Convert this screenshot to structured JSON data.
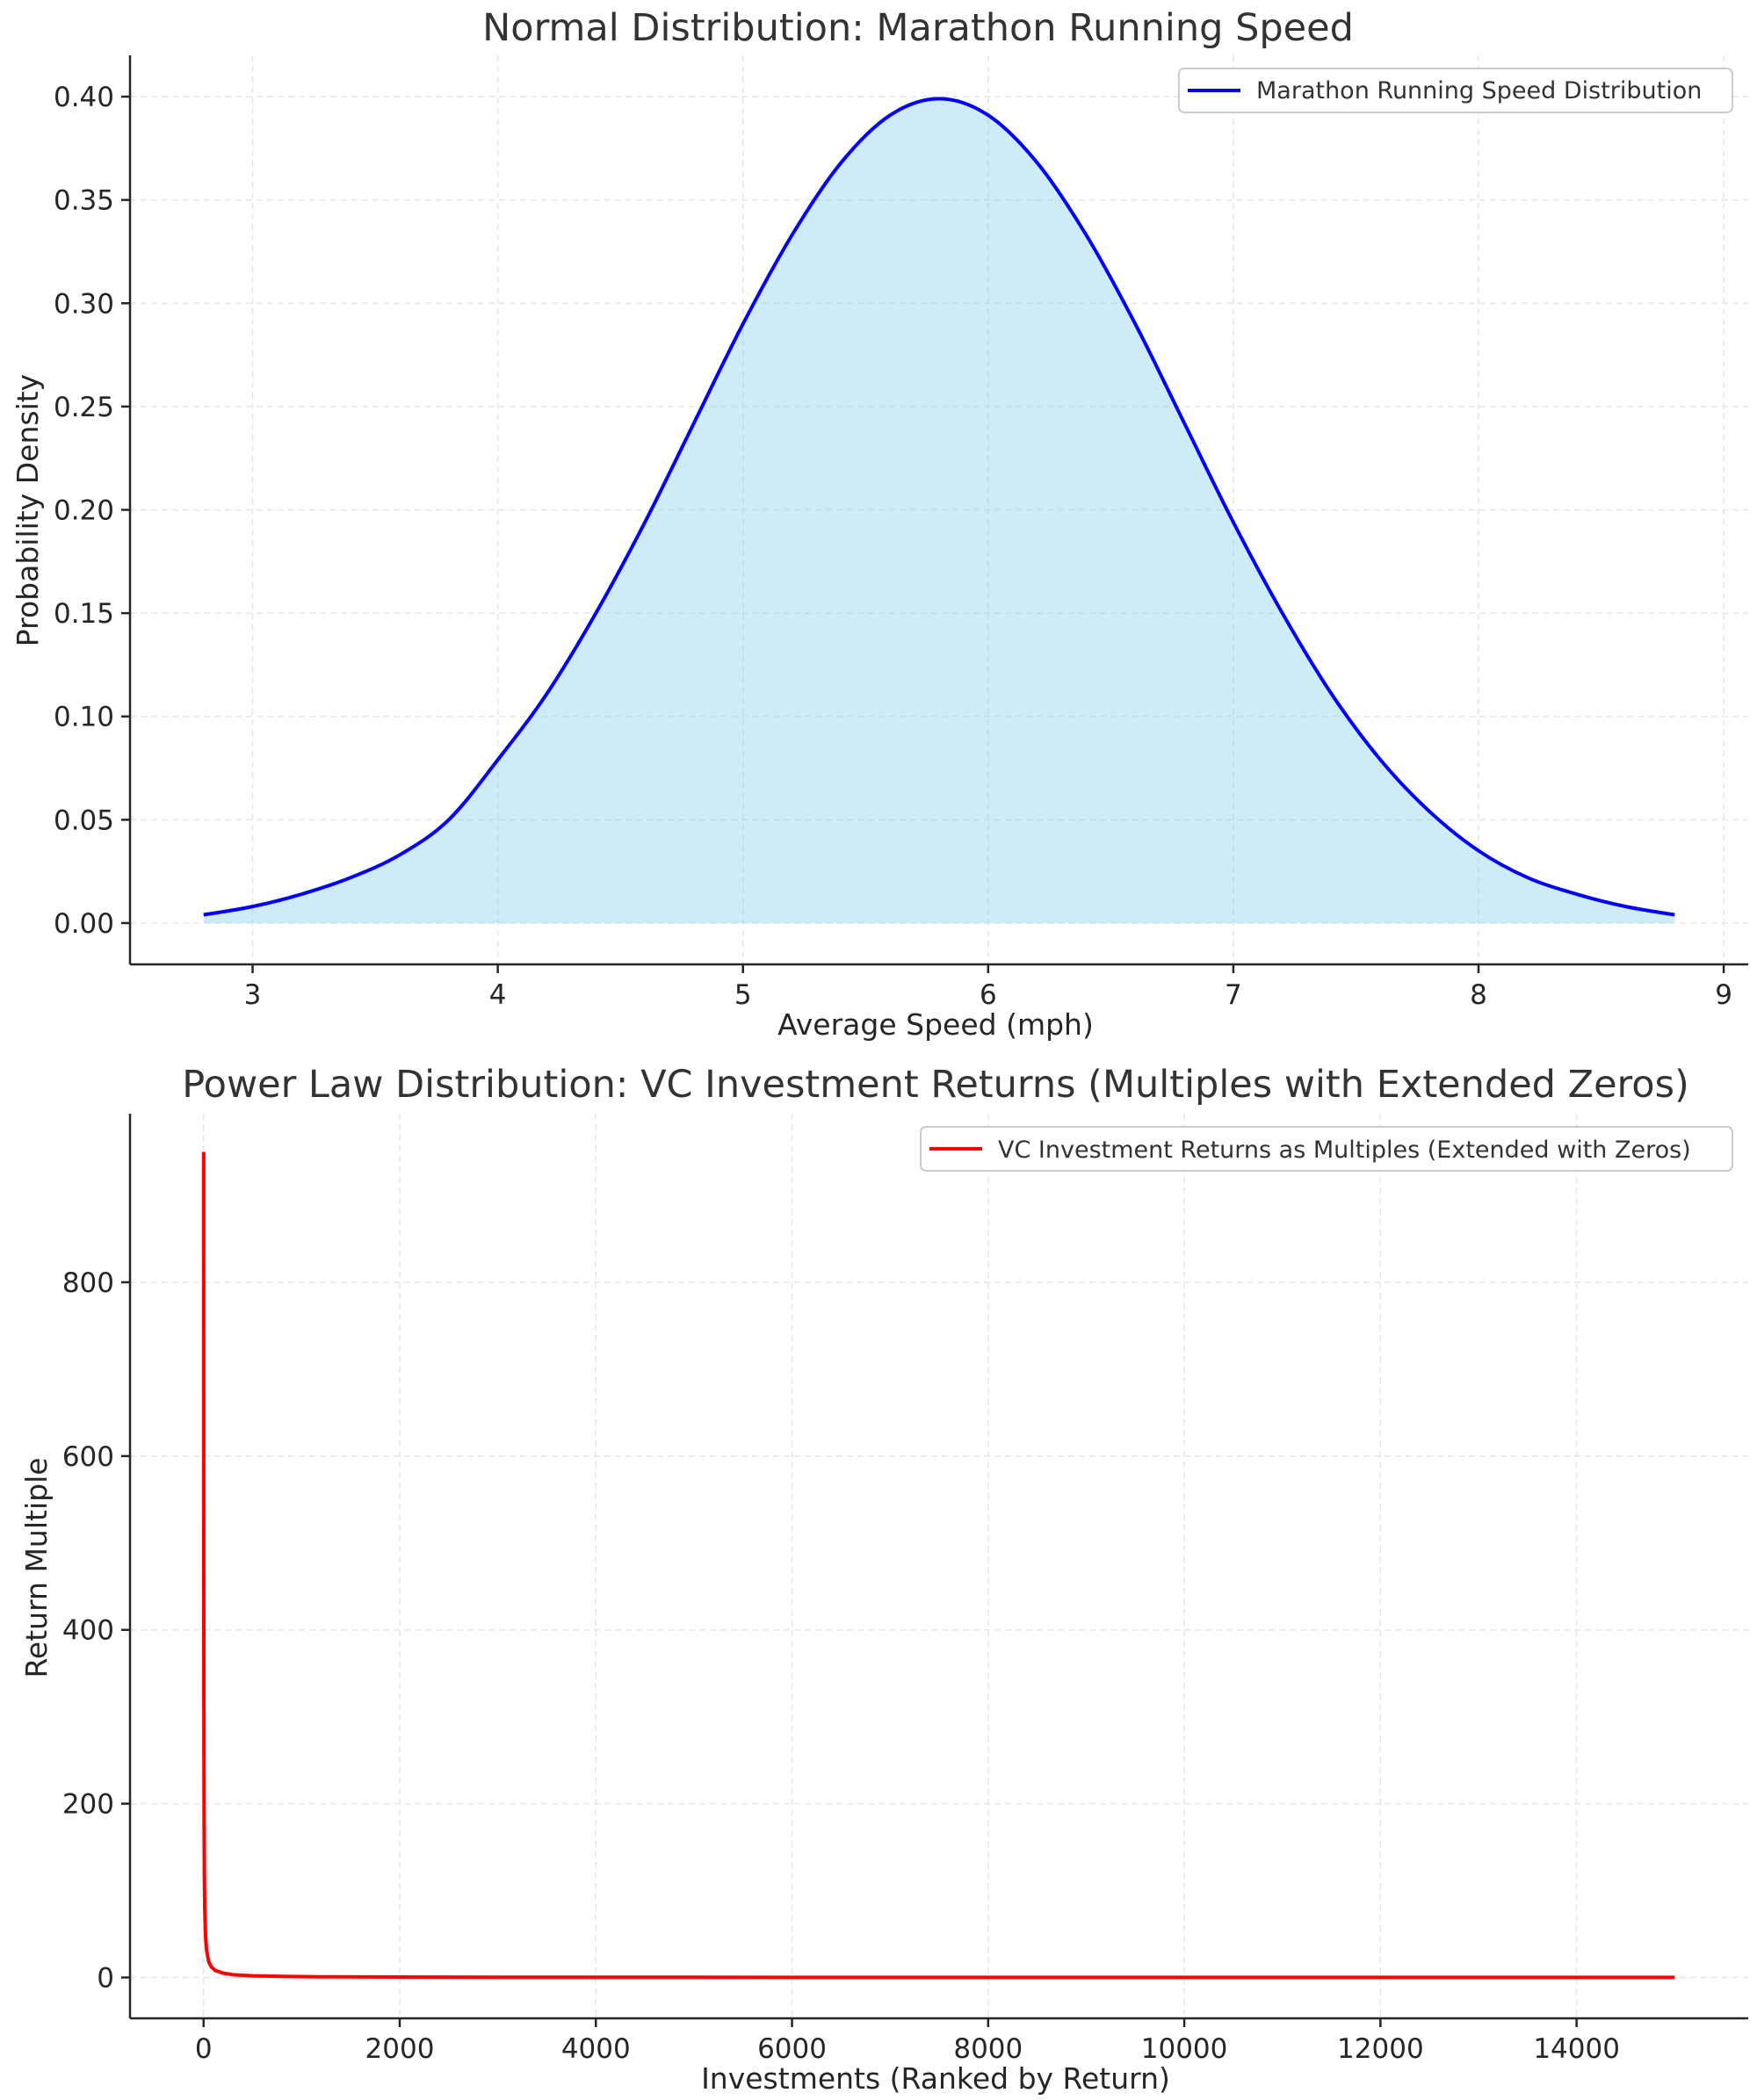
{
  "chart_data": [
    {
      "type": "area",
      "title": "Normal Distribution: Marathon Running Speed",
      "xlabel": "Average Speed (mph)",
      "ylabel": "Probability Density",
      "xlim": [
        2.5,
        9.1
      ],
      "ylim": [
        -0.02,
        0.42
      ],
      "xticks": [
        3,
        4,
        5,
        6,
        7,
        8,
        9
      ],
      "yticks": [
        0.0,
        0.05,
        0.1,
        0.15,
        0.2,
        0.25,
        0.3,
        0.35,
        0.4
      ],
      "ytick_labels": [
        "0.00",
        "0.05",
        "0.10",
        "0.15",
        "0.20",
        "0.25",
        "0.30",
        "0.35",
        "0.40"
      ],
      "grid": true,
      "legend_position": "top-right",
      "series": [
        {
          "name": "Marathon Running Speed Distribution",
          "color": "#0000ff",
          "fill_color": "#87ceeb",
          "x": [
            2.8,
            3.0,
            3.2,
            3.4,
            3.6,
            3.8,
            4.0,
            4.2,
            4.4,
            4.6,
            4.8,
            5.0,
            5.2,
            5.4,
            5.6,
            5.8,
            6.0,
            6.2,
            6.4,
            6.6,
            6.8,
            7.0,
            7.2,
            7.4,
            7.6,
            7.8,
            8.0,
            8.2,
            8.4,
            8.6,
            8.8
          ],
          "y": [
            0.004,
            0.008,
            0.014,
            0.022,
            0.033,
            0.05,
            0.079,
            0.111,
            0.15,
            0.194,
            0.242,
            0.29,
            0.333,
            0.368,
            0.391,
            0.399,
            0.391,
            0.368,
            0.333,
            0.29,
            0.242,
            0.194,
            0.15,
            0.111,
            0.079,
            0.054,
            0.035,
            0.022,
            0.014,
            0.008,
            0.004
          ]
        }
      ]
    },
    {
      "type": "line",
      "title": "Power Law Distribution: VC Investment Returns (Multiples with Extended Zeros)",
      "xlabel": "Investments (Ranked by Return)",
      "ylabel": "Return Multiple",
      "xlim": [
        -750,
        15750
      ],
      "ylim": [
        -47,
        994
      ],
      "xticks": [
        0,
        2000,
        4000,
        6000,
        8000,
        10000,
        12000,
        14000
      ],
      "yticks": [
        0,
        200,
        400,
        600,
        800
      ],
      "grid": true,
      "legend_position": "top-right",
      "series": [
        {
          "name": "VC Investment Returns as Multiples (Extended with Zeros)",
          "color": "#ff0000",
          "x": [
            1,
            2,
            3,
            5,
            8,
            12,
            20,
            30,
            50,
            80,
            120,
            200,
            300,
            500,
            800,
            1200,
            2000,
            3000,
            5000,
            8000,
            12000,
            15000
          ],
          "y": [
            950,
            480,
            320,
            190,
            120,
            80,
            48,
            32,
            19,
            12,
            8,
            5,
            3.2,
            1.9,
            1.2,
            0.8,
            0.5,
            0.3,
            0.19,
            0.12,
            0.08,
            0.06
          ]
        }
      ]
    }
  ]
}
